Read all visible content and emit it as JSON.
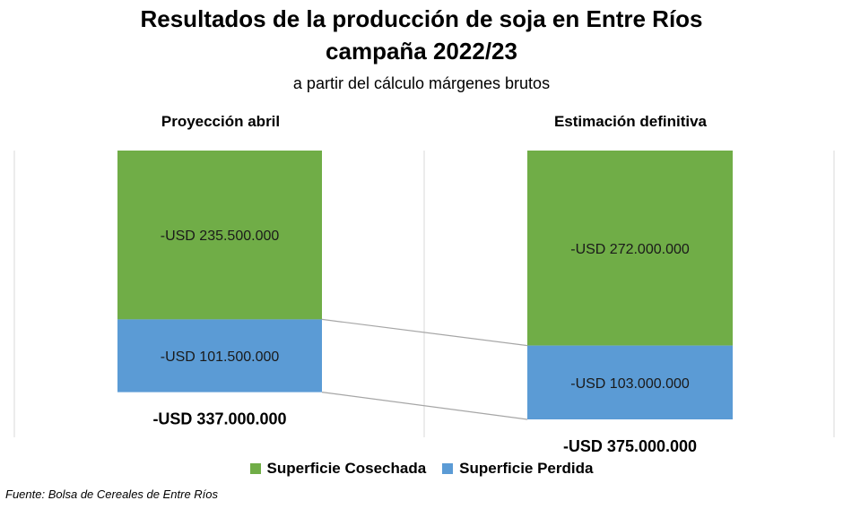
{
  "title_line1": "Resultados de la producción de soja en Entre Ríos",
  "title_line2": "campaña 2022/23",
  "subtitle": "a partir del cálculo márgenes brutos",
  "source": "Fuente: Bolsa de Cereales de Entre Ríos",
  "colors": {
    "cosechada": "#70AD47",
    "perdida": "#5B9BD5"
  },
  "chart_data": {
    "type": "bar",
    "stacked": true,
    "categories": [
      "Proyección abril",
      "Estimación definitiva"
    ],
    "series": [
      {
        "name": "Superficie Cosechada",
        "values": [
          -235500000,
          -272000000
        ],
        "labels": [
          "-USD 235.500.000",
          "-USD 272.000.000"
        ]
      },
      {
        "name": "Superficie Perdida",
        "values": [
          -101500000,
          -103000000
        ],
        "labels": [
          "-USD 101.500.000",
          "-USD 103.000.000"
        ]
      }
    ],
    "totals": [
      -337000000,
      -375000000
    ],
    "total_labels": [
      "-USD 337.000.000",
      "-USD 375.000.000"
    ],
    "series_lines": true,
    "legend_position": "bottom"
  }
}
